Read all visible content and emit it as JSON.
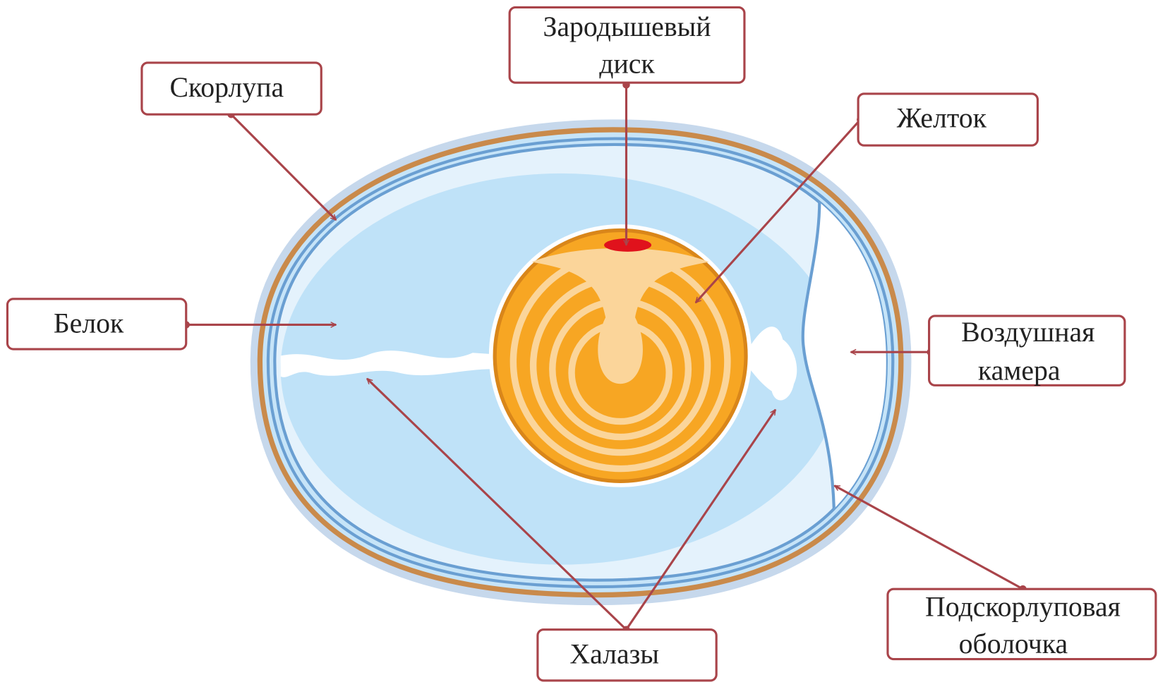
{
  "labels": {
    "shell": "Скорлупа",
    "germinal_disc": [
      "Зародышевый",
      "диск"
    ],
    "yolk": "Желток",
    "albumen": "Белок",
    "air_cell": [
      "Воздушная",
      "камера"
    ],
    "shell_membrane": [
      "Подскорлуповая",
      "оболочка"
    ],
    "chalazae": "Халазы"
  }
}
